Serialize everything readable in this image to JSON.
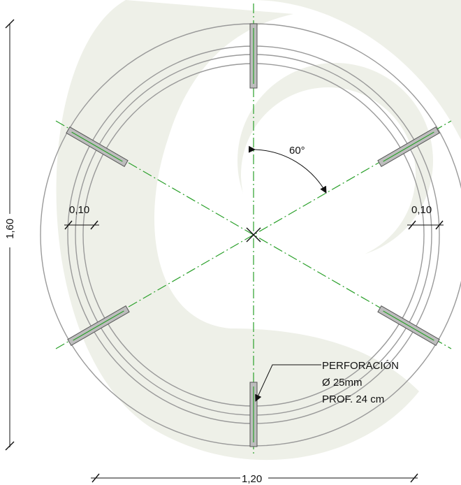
{
  "drawing": {
    "angle_label": "60°",
    "left_gap_label": "0,10",
    "right_gap_label": "0,10",
    "height_label": "1,60",
    "width_label": "1,20",
    "note_lines": [
      "PERFORACIÓN",
      "Ø 25mm",
      "PROF. 24 cm"
    ]
  },
  "colors": {
    "axis": "#2aa02a",
    "ring": "#9a9a9a",
    "plate": "#bdbdbd",
    "watermark": "#eef0e8",
    "text": "#111111"
  }
}
